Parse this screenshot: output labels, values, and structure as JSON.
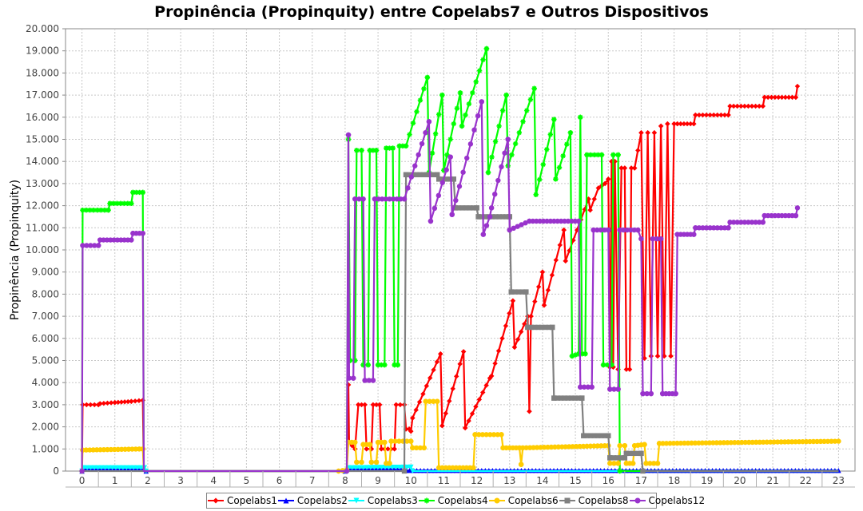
{
  "chart_data": {
    "type": "line",
    "title": "Propinência (Propinquity) entre Copelabs7 e Outros Dispositivos",
    "ylabel": "Propinência (Propinquity)",
    "xlabel": "",
    "ylim": [
      0,
      20000
    ],
    "yticks": [
      "0",
      "1.000",
      "2.000",
      "3.000",
      "4.000",
      "5.000",
      "6.000",
      "7.000",
      "8.000",
      "9.000",
      "10.000",
      "11.000",
      "12.000",
      "13.000",
      "14.000",
      "15.000",
      "16.000",
      "17.000",
      "18.000",
      "19.000",
      "20.000"
    ],
    "categories": [
      "0",
      "1",
      "2",
      "3",
      "4",
      "5",
      "6",
      "7",
      "8",
      "9",
      "10",
      "11",
      "12",
      "13",
      "14",
      "15",
      "16",
      "17",
      "18",
      "19",
      "20",
      "21",
      "22",
      "23"
    ],
    "grid": true,
    "legend_position": "bottom",
    "series": [
      {
        "name": "Copelabs1",
        "color": "#ff0000",
        "marker": "diamond",
        "points": [
          [
            0,
            0
          ],
          [
            0.02,
            3000
          ],
          [
            0.5,
            3000
          ],
          [
            0.55,
            3050
          ],
          [
            1.0,
            3100
          ],
          [
            1.5,
            3150
          ],
          [
            1.85,
            3200
          ],
          [
            1.88,
            0
          ],
          [
            7.8,
            0
          ],
          [
            8.05,
            30
          ],
          [
            8.1,
            3900
          ],
          [
            8.12,
            1300
          ],
          [
            8.3,
            1000
          ],
          [
            8.4,
            3000
          ],
          [
            8.6,
            3000
          ],
          [
            8.65,
            1000
          ],
          [
            8.8,
            1000
          ],
          [
            8.85,
            3000
          ],
          [
            9.05,
            3000
          ],
          [
            9.1,
            1000
          ],
          [
            9.5,
            1000
          ],
          [
            9.55,
            3000
          ],
          [
            9.8,
            3000
          ],
          [
            9.85,
            1900
          ],
          [
            9.95,
            1900
          ],
          [
            10.0,
            1800
          ],
          [
            10.05,
            2400
          ],
          [
            10.9,
            5300
          ],
          [
            10.95,
            2050
          ],
          [
            11.6,
            5400
          ],
          [
            11.65,
            1950
          ],
          [
            12.4,
            4200
          ],
          [
            12.45,
            4300
          ],
          [
            13.1,
            7700
          ],
          [
            13.15,
            5600
          ],
          [
            13.55,
            7000
          ],
          [
            13.6,
            2700
          ],
          [
            13.65,
            7000
          ],
          [
            14.0,
            9000
          ],
          [
            14.05,
            7500
          ],
          [
            14.65,
            10900
          ],
          [
            14.7,
            9500
          ],
          [
            15.4,
            12300
          ],
          [
            15.45,
            11800
          ],
          [
            15.7,
            12800
          ],
          [
            15.9,
            13000
          ],
          [
            16.0,
            13200
          ],
          [
            16.05,
            4700
          ],
          [
            16.1,
            14000
          ],
          [
            16.15,
            4700
          ],
          [
            16.2,
            14000
          ],
          [
            16.3,
            4600
          ],
          [
            16.4,
            13700
          ],
          [
            16.5,
            13700
          ],
          [
            16.55,
            4600
          ],
          [
            16.65,
            4600
          ],
          [
            16.7,
            13700
          ],
          [
            16.8,
            13700
          ],
          [
            17.0,
            15300
          ],
          [
            17.1,
            5100
          ],
          [
            17.2,
            15300
          ],
          [
            17.3,
            5200
          ],
          [
            17.4,
            15300
          ],
          [
            17.5,
            5200
          ],
          [
            17.6,
            15600
          ],
          [
            17.7,
            5200
          ],
          [
            17.8,
            15700
          ],
          [
            17.9,
            5200
          ],
          [
            18.0,
            15700
          ],
          [
            18.1,
            15700
          ],
          [
            18.6,
            15700
          ],
          [
            18.65,
            16100
          ],
          [
            19.65,
            16100
          ],
          [
            19.7,
            16500
          ],
          [
            20.7,
            16500
          ],
          [
            20.75,
            16900
          ],
          [
            21.7,
            16900
          ],
          [
            21.75,
            17400
          ]
        ]
      },
      {
        "name": "Copelabs2",
        "color": "#0000ff",
        "marker": "triangle",
        "points": [
          [
            0,
            0
          ],
          [
            0.05,
            80
          ],
          [
            1.9,
            80
          ],
          [
            1.95,
            0
          ],
          [
            8.0,
            0
          ],
          [
            8.1,
            80
          ],
          [
            9.8,
            80
          ],
          [
            9.85,
            30
          ],
          [
            23.0,
            30
          ]
        ]
      },
      {
        "name": "Copelabs3",
        "color": "#00ffff",
        "marker": "triangle-down",
        "points": [
          [
            0,
            0
          ],
          [
            0.05,
            150
          ],
          [
            1.9,
            150
          ],
          [
            1.95,
            0
          ],
          [
            8.0,
            0
          ],
          [
            8.1,
            150
          ],
          [
            10.0,
            180
          ],
          [
            10.05,
            0
          ],
          [
            23.0,
            0
          ]
        ]
      },
      {
        "name": "Copelabs4",
        "color": "#00ff00",
        "marker": "star",
        "points": [
          [
            0,
            0
          ],
          [
            0.02,
            11800
          ],
          [
            0.8,
            11800
          ],
          [
            0.85,
            12100
          ],
          [
            1.5,
            12100
          ],
          [
            1.55,
            12600
          ],
          [
            1.85,
            12600
          ],
          [
            1.88,
            0
          ],
          [
            7.8,
            0
          ],
          [
            8.05,
            0
          ],
          [
            8.1,
            15000
          ],
          [
            8.15,
            5000
          ],
          [
            8.3,
            5000
          ],
          [
            8.35,
            14500
          ],
          [
            8.5,
            14500
          ],
          [
            8.55,
            4800
          ],
          [
            8.7,
            4800
          ],
          [
            8.75,
            14500
          ],
          [
            8.95,
            14500
          ],
          [
            9.0,
            4800
          ],
          [
            9.2,
            4800
          ],
          [
            9.25,
            14600
          ],
          [
            9.45,
            14600
          ],
          [
            9.5,
            4800
          ],
          [
            9.6,
            4800
          ],
          [
            9.65,
            14700
          ],
          [
            9.85,
            14700
          ],
          [
            10.5,
            17800
          ],
          [
            10.55,
            13500
          ],
          [
            10.95,
            17000
          ],
          [
            11.0,
            13600
          ],
          [
            11.5,
            17100
          ],
          [
            11.55,
            15600
          ],
          [
            12.3,
            19100
          ],
          [
            12.35,
            13500
          ],
          [
            12.9,
            17000
          ],
          [
            12.95,
            13800
          ],
          [
            13.75,
            17300
          ],
          [
            13.8,
            12500
          ],
          [
            14.35,
            15900
          ],
          [
            14.4,
            13200
          ],
          [
            14.85,
            15300
          ],
          [
            14.9,
            5200
          ],
          [
            15.1,
            5300
          ],
          [
            15.15,
            16000
          ],
          [
            15.2,
            5300
          ],
          [
            15.3,
            5300
          ],
          [
            15.35,
            14300
          ],
          [
            15.8,
            14300
          ],
          [
            15.85,
            4800
          ],
          [
            16.1,
            4800
          ],
          [
            16.15,
            14300
          ],
          [
            16.3,
            14300
          ],
          [
            16.35,
            0
          ],
          [
            23.0,
            0
          ]
        ]
      },
      {
        "name": "Copelabs6",
        "color": "#ffcc00",
        "marker": "circle",
        "points": [
          [
            0,
            0
          ],
          [
            0.02,
            950
          ],
          [
            1.85,
            1000
          ],
          [
            1.88,
            0
          ],
          [
            7.8,
            0
          ],
          [
            8.05,
            50
          ],
          [
            8.1,
            1300
          ],
          [
            8.3,
            1300
          ],
          [
            8.35,
            400
          ],
          [
            8.5,
            400
          ],
          [
            8.55,
            1200
          ],
          [
            8.75,
            1200
          ],
          [
            8.8,
            400
          ],
          [
            8.95,
            400
          ],
          [
            9.0,
            1300
          ],
          [
            9.2,
            1300
          ],
          [
            9.25,
            350
          ],
          [
            9.35,
            350
          ],
          [
            9.4,
            1350
          ],
          [
            10.0,
            1350
          ],
          [
            10.05,
            1050
          ],
          [
            10.4,
            1050
          ],
          [
            10.45,
            3150
          ],
          [
            10.8,
            3150
          ],
          [
            10.85,
            150
          ],
          [
            11.9,
            150
          ],
          [
            11.95,
            1650
          ],
          [
            12.75,
            1650
          ],
          [
            12.8,
            1050
          ],
          [
            13.3,
            1050
          ],
          [
            13.35,
            300
          ],
          [
            13.4,
            1050
          ],
          [
            16.0,
            1150
          ],
          [
            16.05,
            350
          ],
          [
            16.3,
            350
          ],
          [
            16.35,
            1150
          ],
          [
            16.5,
            1150
          ],
          [
            16.55,
            350
          ],
          [
            16.75,
            350
          ],
          [
            16.8,
            1150
          ],
          [
            17.1,
            1200
          ],
          [
            17.15,
            350
          ],
          [
            17.5,
            350
          ],
          [
            17.55,
            1250
          ],
          [
            23.0,
            1350
          ]
        ]
      },
      {
        "name": "Copelabs8",
        "color": "#808080",
        "marker": "square",
        "points": [
          [
            0,
            0
          ],
          [
            9.8,
            0
          ],
          [
            9.85,
            13400
          ],
          [
            10.8,
            13400
          ],
          [
            10.85,
            13200
          ],
          [
            11.3,
            13200
          ],
          [
            11.35,
            11900
          ],
          [
            12.0,
            11900
          ],
          [
            12.05,
            11500
          ],
          [
            13.0,
            11500
          ],
          [
            13.05,
            8100
          ],
          [
            13.5,
            8100
          ],
          [
            13.55,
            6500
          ],
          [
            14.3,
            6500
          ],
          [
            14.35,
            3300
          ],
          [
            15.2,
            3300
          ],
          [
            15.25,
            1600
          ],
          [
            16.0,
            1600
          ],
          [
            16.05,
            600
          ],
          [
            16.5,
            600
          ],
          [
            16.55,
            800
          ],
          [
            17.0,
            800
          ],
          [
            17.05,
            0
          ],
          [
            23.0,
            0
          ]
        ]
      },
      {
        "name": "Copelabs12",
        "color": "#9933cc",
        "marker": "circle",
        "points": [
          [
            0,
            0
          ],
          [
            0.02,
            10200
          ],
          [
            0.5,
            10200
          ],
          [
            0.55,
            10450
          ],
          [
            1.5,
            10450
          ],
          [
            1.55,
            10750
          ],
          [
            1.85,
            10750
          ],
          [
            1.88,
            0
          ],
          [
            7.8,
            0
          ],
          [
            8.05,
            0
          ],
          [
            8.1,
            15200
          ],
          [
            8.12,
            4200
          ],
          [
            8.25,
            4200
          ],
          [
            8.3,
            12300
          ],
          [
            8.55,
            12300
          ],
          [
            8.6,
            4100
          ],
          [
            8.85,
            4100
          ],
          [
            8.9,
            12300
          ],
          [
            9.8,
            12300
          ],
          [
            10.55,
            15800
          ],
          [
            10.6,
            11300
          ],
          [
            11.2,
            14200
          ],
          [
            11.25,
            11600
          ],
          [
            12.15,
            16700
          ],
          [
            12.2,
            10700
          ],
          [
            12.4,
            11500
          ],
          [
            12.45,
            11900
          ],
          [
            12.95,
            15000
          ],
          [
            13.0,
            10900
          ],
          [
            13.6,
            11300
          ],
          [
            15.1,
            11300
          ],
          [
            15.15,
            3800
          ],
          [
            15.5,
            3800
          ],
          [
            15.55,
            10900
          ],
          [
            16.0,
            10900
          ],
          [
            16.05,
            3700
          ],
          [
            16.3,
            3700
          ],
          [
            16.35,
            10900
          ],
          [
            16.9,
            10900
          ],
          [
            17.0,
            10500
          ],
          [
            17.05,
            3500
          ],
          [
            17.3,
            3500
          ],
          [
            17.35,
            10500
          ],
          [
            17.6,
            10500
          ],
          [
            17.65,
            3500
          ],
          [
            18.05,
            3500
          ],
          [
            18.1,
            10700
          ],
          [
            18.6,
            10700
          ],
          [
            18.65,
            11000
          ],
          [
            19.65,
            11000
          ],
          [
            19.7,
            11250
          ],
          [
            20.7,
            11250
          ],
          [
            20.75,
            11550
          ],
          [
            21.7,
            11550
          ],
          [
            21.75,
            11900
          ]
        ]
      }
    ]
  }
}
